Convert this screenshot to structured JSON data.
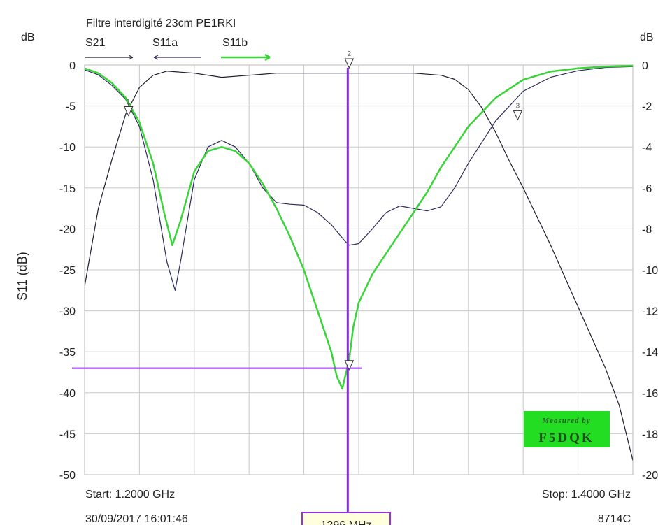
{
  "chart_data": {
    "type": "line",
    "title": "Filtre interdigité 23cm PE1RKI",
    "ylabel": "S11 (dB)",
    "left_unit": "dB",
    "right_unit": "dB",
    "left_ticks": [
      "0",
      "-5",
      "-10",
      "-15",
      "-20",
      "-25",
      "-30",
      "-35",
      "-40",
      "-45",
      "-50"
    ],
    "right_ticks": [
      "0",
      "-2",
      "-4",
      "-6",
      "-8",
      "-10",
      "-12",
      "-14",
      "-16",
      "-18",
      "-20"
    ],
    "ylim_left": [
      -50,
      0
    ],
    "ylim_right": [
      -20,
      0
    ],
    "xlim_ghz": [
      1.2,
      1.4
    ],
    "grid": true,
    "start_label": "Start: 1.2000 GHz",
    "stop_label": "Stop: 1.4000 GHz",
    "date_label": "30/09/2017 16:01:46",
    "instrument_label": "8714C",
    "marker_freq_label": "1296 MHz",
    "cursor": {
      "freq_ghz": 1.296,
      "level_db": -37
    },
    "watermark": [
      "Measured by",
      "F5DQK"
    ],
    "markers": [
      {
        "label": "1",
        "freq_ghz": 1.216,
        "db": -6.2
      },
      {
        "label": "2",
        "freq_ghz": 1.2965,
        "db": 0.0
      },
      {
        "label": "3",
        "freq_ghz": 1.358,
        "db": -6.0
      },
      {
        "label": "4",
        "freq_ghz": 1.2965,
        "db": -36.5
      }
    ],
    "series": [
      {
        "name": "S21",
        "axis": "right",
        "color": "#1e1e2e",
        "width": 1.2,
        "x": [
          1.2,
          1.205,
          1.21,
          1.215,
          1.22,
          1.225,
          1.23,
          1.24,
          1.25,
          1.26,
          1.27,
          1.28,
          1.29,
          1.3,
          1.31,
          1.32,
          1.33,
          1.335,
          1.34,
          1.345,
          1.35,
          1.355,
          1.36,
          1.365,
          1.37,
          1.375,
          1.38,
          1.385,
          1.39,
          1.395,
          1.4
        ],
        "y": [
          -10.8,
          -7.0,
          -4.6,
          -2.4,
          -1.1,
          -0.5,
          -0.3,
          -0.4,
          -0.6,
          -0.5,
          -0.4,
          -0.4,
          -0.4,
          -0.4,
          -0.4,
          -0.4,
          -0.5,
          -0.7,
          -1.2,
          -2.1,
          -3.3,
          -4.7,
          -6.0,
          -7.4,
          -8.8,
          -10.3,
          -11.8,
          -13.3,
          -14.8,
          -16.6,
          -19.3
        ]
      },
      {
        "name": "S11a",
        "axis": "left",
        "color": "#2c2c5a",
        "width": 1.2,
        "x": [
          1.2,
          1.205,
          1.21,
          1.215,
          1.22,
          1.225,
          1.23,
          1.233,
          1.235,
          1.24,
          1.245,
          1.25,
          1.255,
          1.26,
          1.265,
          1.27,
          1.275,
          1.28,
          1.285,
          1.29,
          1.295,
          1.2965,
          1.3,
          1.305,
          1.31,
          1.315,
          1.32,
          1.325,
          1.33,
          1.335,
          1.34,
          1.35,
          1.36,
          1.37,
          1.38,
          1.39,
          1.4
        ],
        "y": [
          -0.6,
          -1.2,
          -2.5,
          -4.2,
          -7.5,
          -14.0,
          -24.0,
          -27.5,
          -24.0,
          -14.0,
          -10.0,
          -9.2,
          -10.0,
          -12.0,
          -15.0,
          -16.8,
          -17.0,
          -17.1,
          -18.0,
          -19.5,
          -21.5,
          -22.0,
          -21.8,
          -20.0,
          -18.0,
          -17.2,
          -17.5,
          -17.8,
          -17.3,
          -15.0,
          -12.0,
          -6.8,
          -3.2,
          -1.5,
          -0.7,
          -0.3,
          -0.2
        ]
      },
      {
        "name": "S11b",
        "axis": "left",
        "color": "#3ad43a",
        "width": 2.5,
        "x": [
          1.2,
          1.205,
          1.21,
          1.215,
          1.22,
          1.225,
          1.229,
          1.232,
          1.235,
          1.24,
          1.245,
          1.25,
          1.255,
          1.26,
          1.265,
          1.27,
          1.275,
          1.28,
          1.285,
          1.29,
          1.292,
          1.294,
          1.2965,
          1.298,
          1.3,
          1.305,
          1.31,
          1.315,
          1.32,
          1.325,
          1.33,
          1.335,
          1.34,
          1.35,
          1.36,
          1.37,
          1.38,
          1.39,
          1.4
        ],
        "y": [
          -0.4,
          -1.0,
          -2.2,
          -4.0,
          -7.0,
          -12.0,
          -18.0,
          -22.0,
          -19.0,
          -13.0,
          -10.5,
          -10.0,
          -10.5,
          -12.0,
          -14.5,
          -17.5,
          -21.0,
          -25.0,
          -30.0,
          -35.0,
          -38.0,
          -39.5,
          -36.0,
          -32.0,
          -29.0,
          -25.5,
          -23.0,
          -20.5,
          -18.0,
          -15.5,
          -12.5,
          -10.0,
          -7.5,
          -4.0,
          -1.8,
          -0.8,
          -0.4,
          -0.2,
          -0.1
        ]
      }
    ]
  }
}
